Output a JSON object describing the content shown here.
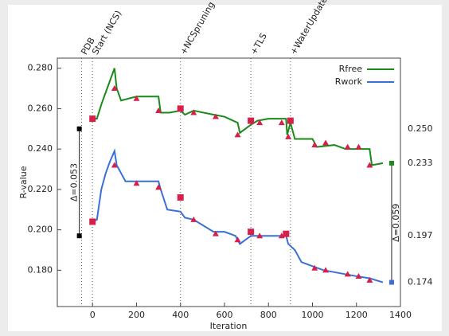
{
  "chart_data": {
    "type": "line",
    "x_label": "Iteration",
    "y_label": "R-value",
    "xlim": [
      -160,
      1400
    ],
    "ylim": [
      0.162,
      0.285
    ],
    "xticks": [
      0,
      200,
      400,
      600,
      800,
      1000,
      1200,
      1400
    ],
    "yticks": [
      {
        "value": 0.18,
        "label": "0.180"
      },
      {
        "value": 0.2,
        "label": "0.200"
      },
      {
        "value": 0.22,
        "label": "0.220"
      },
      {
        "value": 0.24,
        "label": "0.240"
      },
      {
        "value": 0.26,
        "label": "0.260"
      },
      {
        "value": 0.28,
        "label": "0.280"
      }
    ],
    "legend": "top-right",
    "series": [
      {
        "name": "Rfree",
        "color": "#1a8a1a",
        "x": [
          0,
          20,
          40,
          60,
          80,
          100,
          110,
          130,
          200,
          300,
          310,
          350,
          400,
          420,
          460,
          550,
          600,
          660,
          670,
          720,
          750,
          800,
          880,
          885,
          900,
          920,
          1000,
          1020,
          1100,
          1150,
          1260,
          1270,
          1320
        ],
        "values": [
          0.255,
          0.255,
          0.262,
          0.268,
          0.274,
          0.28,
          0.27,
          0.264,
          0.266,
          0.266,
          0.258,
          0.258,
          0.259,
          0.257,
          0.259,
          0.257,
          0.256,
          0.253,
          0.248,
          0.252,
          0.254,
          0.255,
          0.255,
          0.247,
          0.253,
          0.245,
          0.245,
          0.241,
          0.242,
          0.24,
          0.24,
          0.232,
          0.233
        ]
      },
      {
        "name": "Rwork",
        "color": "#3a6fd8",
        "x": [
          0,
          20,
          40,
          60,
          80,
          100,
          110,
          150,
          300,
          310,
          340,
          400,
          420,
          460,
          550,
          600,
          650,
          670,
          720,
          800,
          880,
          890,
          920,
          950,
          1000,
          1050,
          1200,
          1260,
          1320
        ],
        "values": [
          0.204,
          0.205,
          0.22,
          0.228,
          0.234,
          0.239,
          0.232,
          0.224,
          0.224,
          0.22,
          0.21,
          0.209,
          0.206,
          0.205,
          0.199,
          0.199,
          0.197,
          0.193,
          0.197,
          0.197,
          0.197,
          0.193,
          0.19,
          0.184,
          0.182,
          0.18,
          0.177,
          0.176,
          0.174
        ]
      }
    ],
    "marker_color": "#d6204a",
    "square_markers": {
      "x": [
        0,
        400,
        720,
        900,
        0,
        400,
        720,
        880
      ],
      "values": [
        0.255,
        0.26,
        0.254,
        0.254,
        0.204,
        0.216,
        0.199,
        0.198
      ]
    },
    "triangle_markers": {
      "x": [
        100,
        200,
        300,
        460,
        560,
        660,
        760,
        860,
        890,
        1010,
        1060,
        1160,
        1210,
        1260,
        100,
        200,
        300,
        460,
        560,
        660,
        760,
        860,
        1010,
        1060,
        1160,
        1210,
        1260
      ],
      "values": [
        0.27,
        0.265,
        0.259,
        0.258,
        0.256,
        0.247,
        0.253,
        0.253,
        0.246,
        0.242,
        0.243,
        0.241,
        0.241,
        0.232,
        0.232,
        0.223,
        0.221,
        0.205,
        0.198,
        0.195,
        0.197,
        0.197,
        0.181,
        0.18,
        0.178,
        0.177,
        0.175
      ]
    },
    "events": [
      {
        "x": -50,
        "label": "PDB"
      },
      {
        "x": 0,
        "label": "Start (NCS)"
      },
      {
        "x": 400,
        "label": "+NCSpruning"
      },
      {
        "x": 720,
        "label": "+TLS"
      },
      {
        "x": 900,
        "label": "+WaterUpdate"
      }
    ],
    "brackets": [
      {
        "x": -60,
        "values": [
          0.25,
          0.197
        ],
        "label": "Δ=0.053",
        "colors": [
          "#000000",
          "#000000"
        ]
      },
      {
        "x": 1360,
        "values": [
          0.233,
          0.174
        ],
        "label": "Δ=0.059",
        "colors": [
          "#1a8a1a",
          "#3a6fd8"
        ]
      }
    ],
    "right_labels": [
      {
        "value": 0.25,
        "label": "0.250"
      },
      {
        "value": 0.233,
        "label": "0.233"
      },
      {
        "value": 0.197,
        "label": "0.197"
      },
      {
        "value": 0.174,
        "label": "0.174"
      }
    ]
  }
}
